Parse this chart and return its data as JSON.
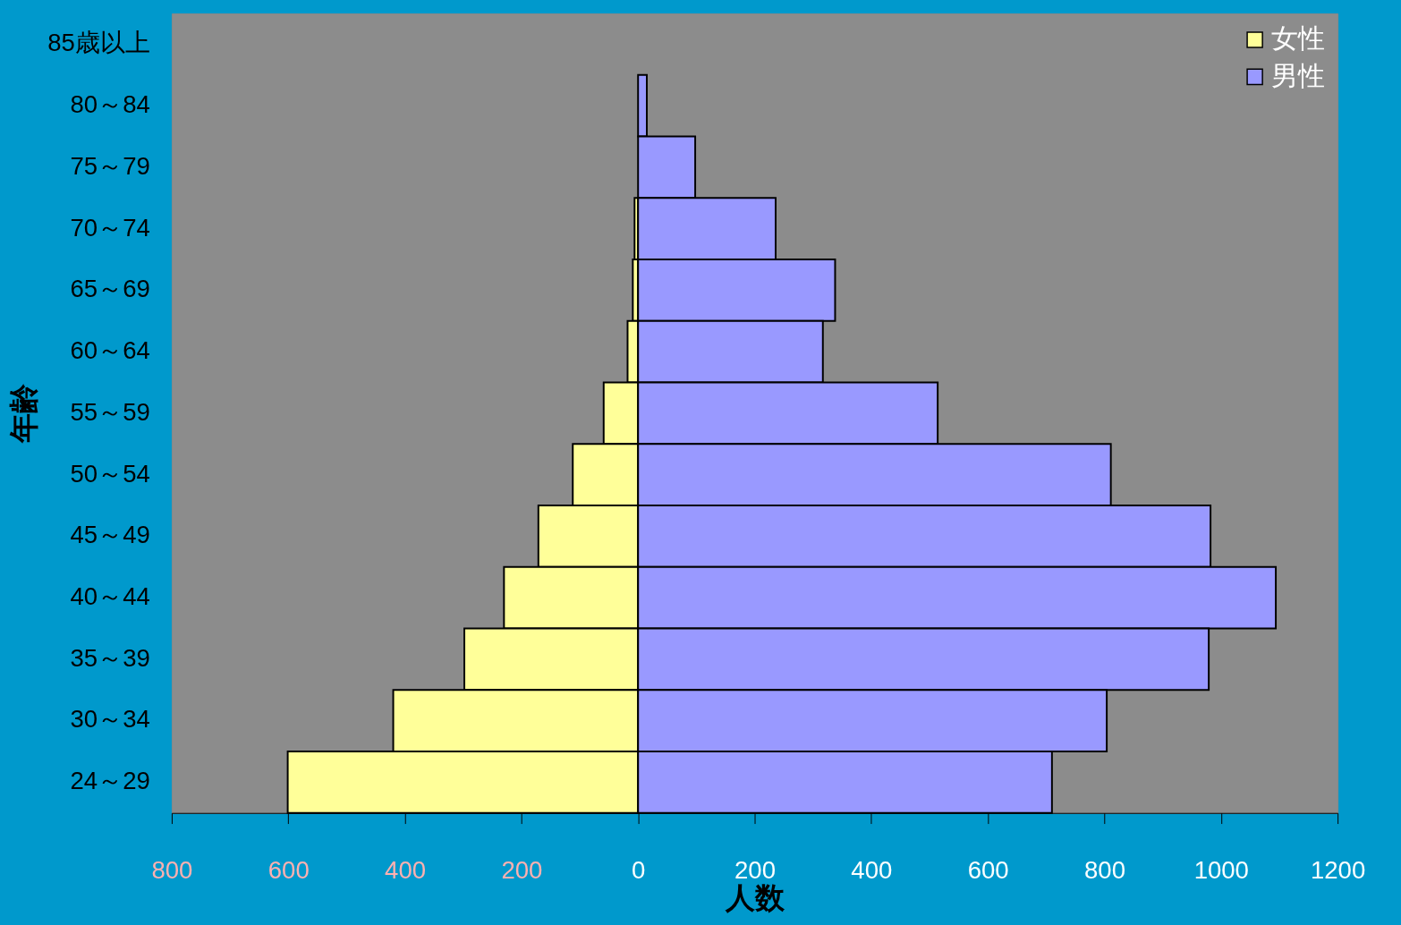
{
  "chart_data": {
    "type": "bar",
    "orientation": "horizontal",
    "stacked": true,
    "xlabel": "人数",
    "ylabel": "年齢",
    "categories": [
      "85歳以上",
      "80～84",
      "75～79",
      "70～74",
      "65～69",
      "60～64",
      "55～59",
      "50～54",
      "45～49",
      "40～44",
      "35～39",
      "30～34",
      "24～29"
    ],
    "series": [
      {
        "name": "女性",
        "color": "#ffff99",
        "values": [
          0,
          null,
          null,
          -6,
          -9,
          -18,
          -59,
          -112,
          -171,
          -230,
          -298,
          -420,
          -601
        ]
      },
      {
        "name": "男性",
        "color": "#9999ff",
        "values": [
          0,
          15,
          98,
          236,
          338,
          317,
          514,
          811,
          982,
          1094,
          979,
          804,
          710
        ]
      }
    ],
    "xlim": [
      -800,
      1200
    ],
    "xticks": [
      {
        "value": -800,
        "label": "800"
      },
      {
        "value": -600,
        "label": "600"
      },
      {
        "value": -400,
        "label": "400"
      },
      {
        "value": -200,
        "label": "200"
      },
      0,
      200,
      400,
      600,
      800,
      1000,
      1200
    ],
    "legend": "top right",
    "grid": false
  }
}
